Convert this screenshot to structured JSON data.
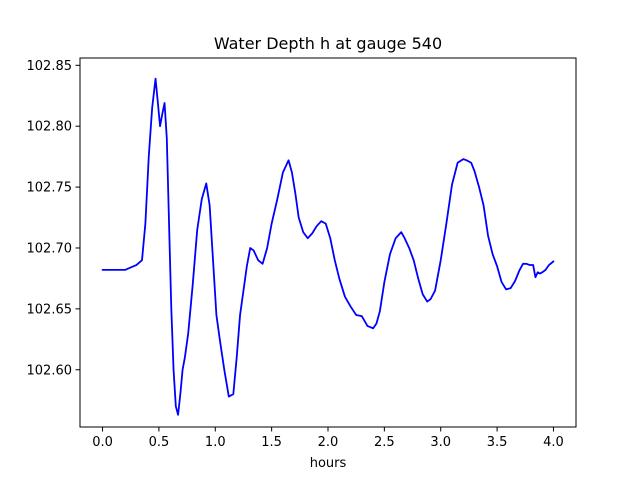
{
  "chart_data": {
    "type": "line",
    "title": "Water Depth h at gauge 540",
    "xlabel": "hours",
    "ylabel": "",
    "xlim": [
      -0.2,
      4.2
    ],
    "ylim": [
      102.553,
      102.856
    ],
    "xticks": [
      0.0,
      0.5,
      1.0,
      1.5,
      2.0,
      2.5,
      3.0,
      3.5,
      4.0
    ],
    "xtick_labels": [
      "0.0",
      "0.5",
      "1.0",
      "1.5",
      "2.0",
      "2.5",
      "3.0",
      "3.5",
      "4.0"
    ],
    "yticks": [
      102.55,
      102.6,
      102.65,
      102.7,
      102.75,
      102.8,
      102.85
    ],
    "ytick_labels": [
      "102.55",
      "102.60",
      "102.65",
      "102.70",
      "102.75",
      "102.80",
      "102.85"
    ],
    "grid": false,
    "series": [
      {
        "color": "#0000ff",
        "x": [
          0.0,
          0.1,
          0.2,
          0.25,
          0.3,
          0.35,
          0.38,
          0.41,
          0.44,
          0.47,
          0.49,
          0.51,
          0.53,
          0.55,
          0.57,
          0.59,
          0.61,
          0.63,
          0.65,
          0.67,
          0.69,
          0.71,
          0.73,
          0.76,
          0.8,
          0.84,
          0.88,
          0.92,
          0.95,
          0.98,
          1.01,
          1.04,
          1.08,
          1.12,
          1.16,
          1.19,
          1.22,
          1.25,
          1.28,
          1.31,
          1.34,
          1.38,
          1.42,
          1.46,
          1.5,
          1.55,
          1.6,
          1.65,
          1.68,
          1.71,
          1.74,
          1.78,
          1.82,
          1.86,
          1.9,
          1.94,
          1.98,
          2.02,
          2.06,
          2.1,
          2.15,
          2.2,
          2.25,
          2.3,
          2.35,
          2.4,
          2.43,
          2.46,
          2.5,
          2.55,
          2.6,
          2.65,
          2.68,
          2.72,
          2.76,
          2.8,
          2.84,
          2.88,
          2.91,
          2.95,
          3.0,
          3.05,
          3.1,
          3.15,
          3.2,
          3.23,
          3.27,
          3.3,
          3.34,
          3.38,
          3.42,
          3.46,
          3.5,
          3.54,
          3.58,
          3.62,
          3.66,
          3.7,
          3.73,
          3.76,
          3.79,
          3.82,
          3.84,
          3.86,
          3.88,
          3.9,
          3.93,
          3.96,
          4.0
        ],
        "values": [
          102.682,
          102.682,
          102.682,
          102.684,
          102.686,
          102.69,
          102.72,
          102.775,
          102.815,
          102.839,
          102.82,
          102.8,
          102.81,
          102.819,
          102.79,
          102.72,
          102.65,
          102.6,
          102.57,
          102.563,
          102.58,
          102.6,
          102.61,
          102.63,
          102.67,
          102.715,
          102.74,
          102.753,
          102.735,
          102.69,
          102.645,
          102.625,
          102.6,
          102.578,
          102.58,
          102.61,
          102.645,
          102.665,
          102.685,
          102.7,
          102.698,
          102.69,
          102.687,
          102.7,
          102.72,
          102.74,
          102.762,
          102.772,
          102.762,
          102.745,
          102.725,
          102.713,
          102.708,
          102.712,
          102.718,
          102.722,
          102.72,
          102.708,
          102.69,
          102.675,
          102.66,
          102.652,
          102.645,
          102.644,
          102.636,
          102.634,
          102.638,
          102.648,
          102.672,
          102.695,
          102.708,
          102.713,
          102.708,
          102.7,
          102.69,
          102.675,
          102.662,
          102.656,
          102.658,
          102.665,
          102.69,
          102.72,
          102.752,
          102.77,
          102.773,
          102.772,
          102.77,
          102.763,
          102.75,
          102.735,
          102.71,
          102.695,
          102.685,
          102.672,
          102.666,
          102.667,
          102.673,
          102.682,
          102.687,
          102.687,
          102.686,
          102.686,
          102.676,
          102.68,
          102.679,
          102.68,
          102.682,
          102.686,
          102.689
        ]
      }
    ]
  }
}
